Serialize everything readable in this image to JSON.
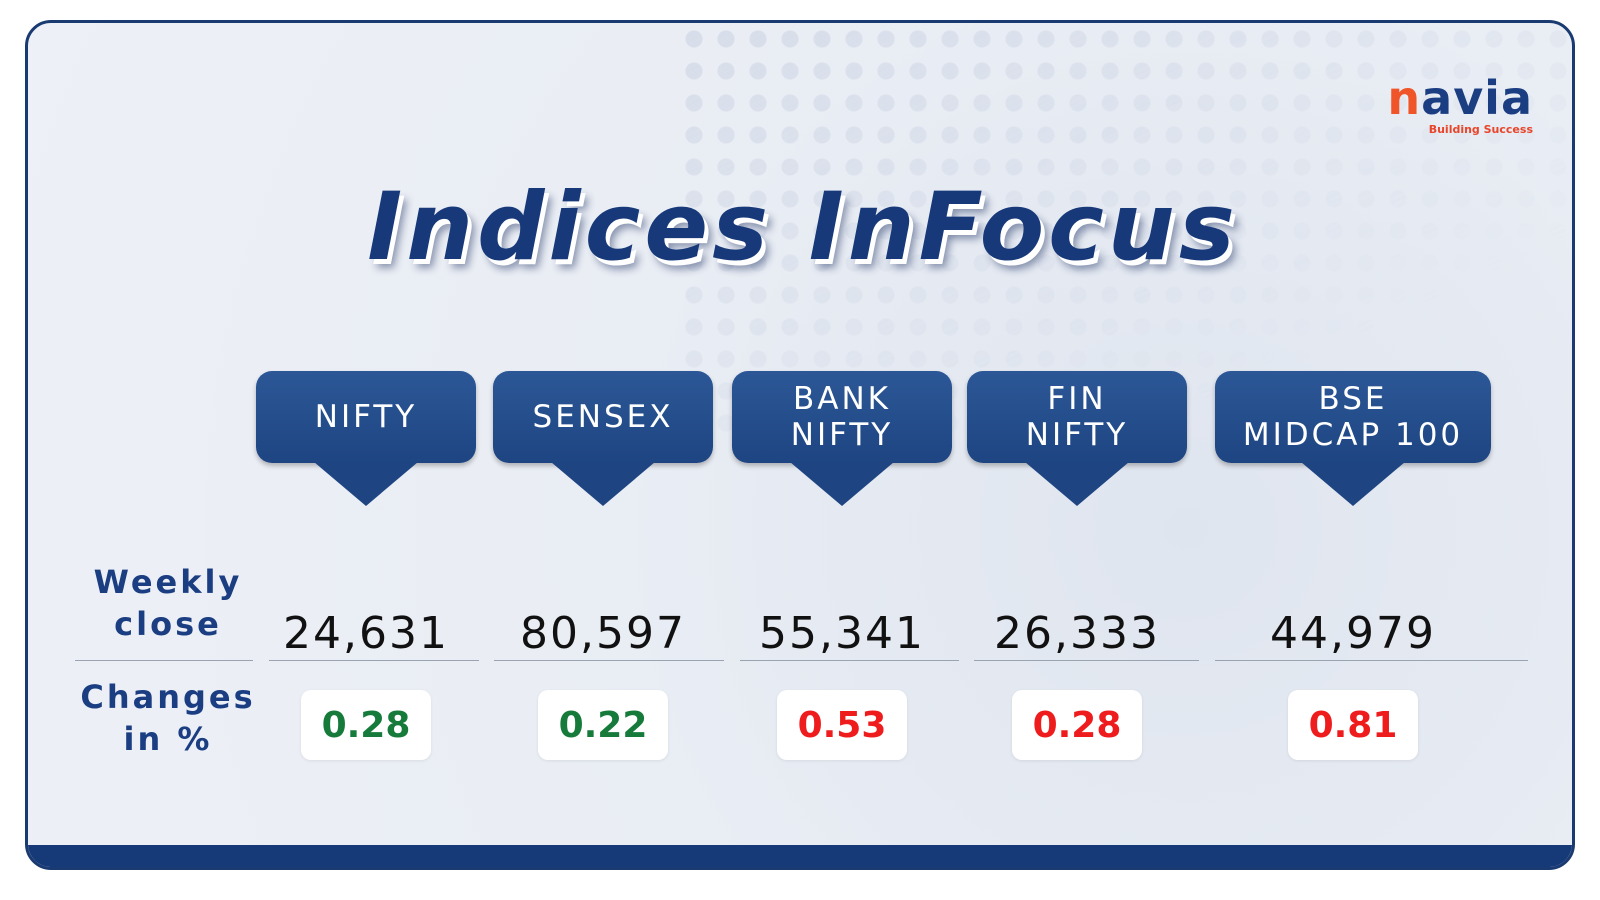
{
  "brand": {
    "name": "navia",
    "tagline": "Building Success"
  },
  "title": "Indices InFocus",
  "row_labels": {
    "close": "Weekly\nclose",
    "change": "Changes\nin %"
  },
  "indices": [
    {
      "name": "NIFTY",
      "close": "24,631",
      "change": "0.28",
      "change_color": "#157a3a"
    },
    {
      "name": "SENSEX",
      "close": "80,597",
      "change": "0.22",
      "change_color": "#157a3a"
    },
    {
      "name": "BANK\nNIFTY",
      "close": "55,341",
      "change": "0.53",
      "change_color": "#ee1c1c"
    },
    {
      "name": "FIN\nNIFTY",
      "close": "26,333",
      "change": "0.28",
      "change_color": "#ee1c1c"
    },
    {
      "name": "BSE\nMIDCAP 100",
      "close": "44,979",
      "change": "0.81",
      "change_color": "#ee1c1c"
    }
  ]
}
